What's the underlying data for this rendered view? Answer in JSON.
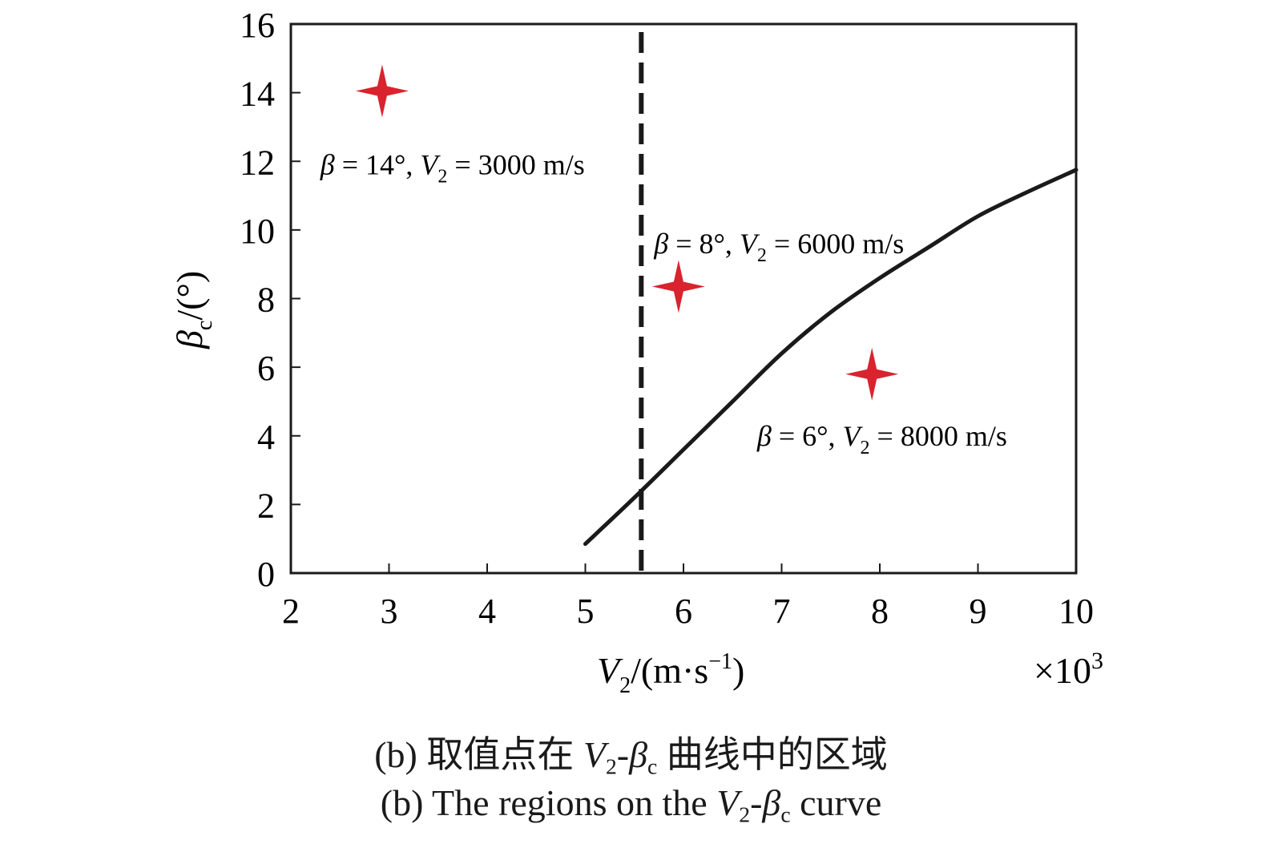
{
  "chart_data": {
    "type": "line",
    "xlim": [
      2,
      10
    ],
    "ylim": [
      0,
      16
    ],
    "x_ticks": [
      2,
      3,
      4,
      5,
      6,
      7,
      8,
      9,
      10
    ],
    "y_ticks": [
      0,
      2,
      4,
      6,
      8,
      10,
      12,
      14,
      16
    ],
    "x_multiplier_label": "×10",
    "x_multiplier_exp": "3",
    "grid": false,
    "curve": {
      "x": [
        5.0,
        5.5,
        6.0,
        6.5,
        7.0,
        7.5,
        8.0,
        8.5,
        9.0,
        9.5,
        10.0
      ],
      "y": [
        0.85,
        2.2,
        3.6,
        5.0,
        6.4,
        7.6,
        8.6,
        9.5,
        10.4,
        11.1,
        11.75
      ]
    },
    "vline_x": 5.57,
    "points": [
      {
        "x": 2.93,
        "y": 14.05
      },
      {
        "x": 5.95,
        "y": 8.35
      },
      {
        "x": 7.92,
        "y": 5.8
      }
    ],
    "annotations": [
      {
        "beta": "14",
        "v2": "3000 m/s",
        "x": 2.3,
        "y": 11.9
      },
      {
        "beta": "8",
        "v2": "6000 m/s",
        "x": 5.7,
        "y": 9.6
      },
      {
        "beta": "6",
        "v2": "8000 m/s",
        "x": 6.75,
        "y": 4.0
      }
    ],
    "ylabel_main": "β",
    "ylabel_sub": "c",
    "ylabel_unit": "/(°)",
    "xlabel_main": "V",
    "xlabel_sub": "2",
    "xlabel_unit": "/(m·s",
    "xlabel_exp": "−1",
    "xlabel_close": ")",
    "colors": {
      "curve": "#1a1a1a",
      "vline": "#1a1a1a",
      "star": "#d9232e"
    }
  },
  "caption": {
    "line1_prefix": "(b) 取值点在 ",
    "line1_v": "V",
    "line1_sub2": "2",
    "line1_dash": "-",
    "line1_beta": "β",
    "line1_subc": "c",
    "line1_suffix": " 曲线中的区域",
    "line2_prefix": "(b) The regions on the ",
    "line2_v": "V",
    "line2_sub2": "2",
    "line2_dash": "-",
    "line2_beta": "β",
    "line2_subc": "c",
    "line2_suffix": " curve"
  }
}
